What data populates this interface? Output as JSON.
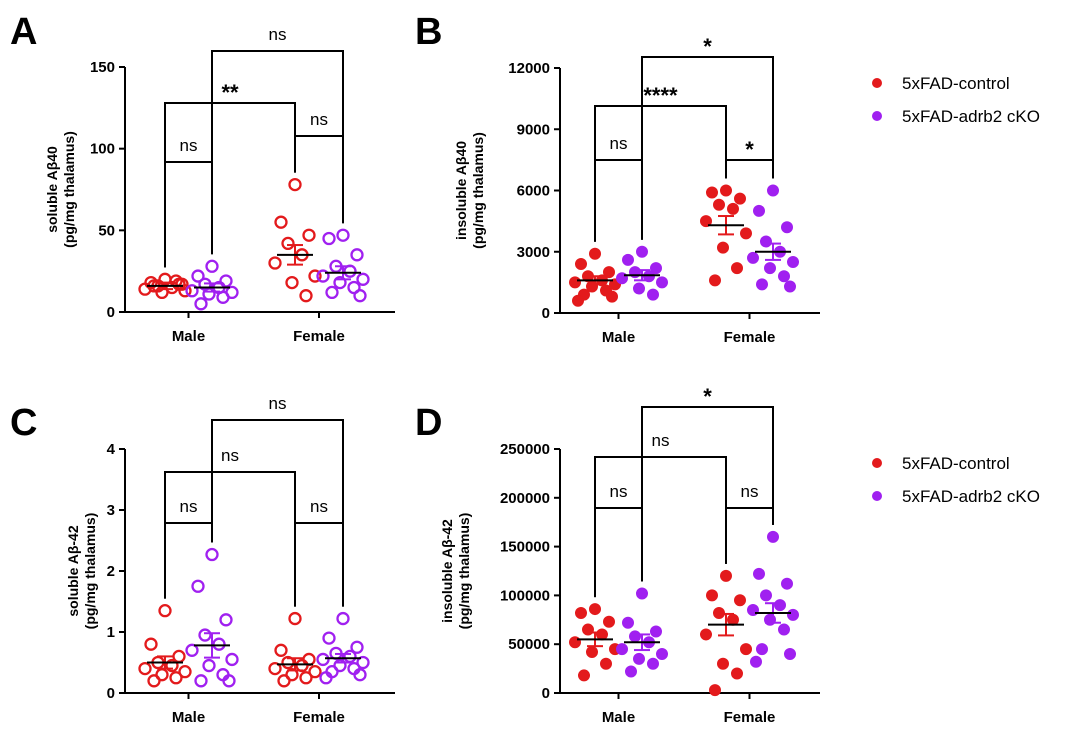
{
  "colors": {
    "control": "#e31a1c",
    "cko": "#a020f0",
    "axis": "#000000"
  },
  "legend": [
    {
      "label": "5xFAD-control",
      "color": "#e31a1c"
    },
    {
      "label": "5xFAD-adrb2 cKO",
      "color": "#a020f0"
    }
  ],
  "chart_data": [
    {
      "panel": "A",
      "type": "scatter",
      "marker": "open-circle",
      "ylabel_line1": "soluble Aβ40",
      "ylabel_line2": "(pg/mg thalamus)",
      "ylim": [
        0,
        150
      ],
      "yticks": [
        0,
        50,
        100,
        150
      ],
      "categories": [
        "Male",
        "Female"
      ],
      "groups": [
        {
          "category": "Male",
          "series": "5xFAD-control",
          "mean": 16,
          "sem": 2,
          "values": [
            20,
            18,
            17,
            16,
            15,
            14,
            13,
            12,
            19,
            16,
            17
          ]
        },
        {
          "category": "Male",
          "series": "5xFAD-adrb2 cKO",
          "mean": 15,
          "sem": 2.5,
          "values": [
            28,
            22,
            19,
            17,
            15,
            13,
            12,
            11,
            9,
            5
          ]
        },
        {
          "category": "Female",
          "series": "5xFAD-control",
          "mean": 35,
          "sem": 6,
          "values": [
            78,
            55,
            47,
            42,
            35,
            30,
            22,
            18,
            10
          ]
        },
        {
          "category": "Female",
          "series": "5xFAD-adrb2 cKO",
          "mean": 24,
          "sem": 4,
          "values": [
            47,
            45,
            35,
            28,
            25,
            22,
            20,
            18,
            15,
            12,
            10
          ]
        }
      ],
      "comparisons": [
        {
          "label": "ns",
          "from": "Male/5xFAD-control",
          "to": "Male/5xFAD-adrb2 cKO"
        },
        {
          "label": "ns",
          "from": "Female/5xFAD-control",
          "to": "Female/5xFAD-adrb2 cKO"
        },
        {
          "label": "**",
          "from": "Male/5xFAD-control",
          "to": "Female/5xFAD-control"
        },
        {
          "label": "ns",
          "from": "Male/5xFAD-adrb2 cKO",
          "to": "Female/5xFAD-adrb2 cKO"
        }
      ]
    },
    {
      "panel": "B",
      "type": "scatter",
      "marker": "filled-circle",
      "ylabel_line1": "insoluble Aβ40",
      "ylabel_line2": "(pg/mg thalamus)",
      "ylim": [
        0,
        12000
      ],
      "yticks": [
        0,
        3000,
        6000,
        9000,
        12000
      ],
      "categories": [
        "Male",
        "Female"
      ],
      "groups": [
        {
          "category": "Male",
          "series": "5xFAD-control",
          "mean": 1600,
          "sem": 200,
          "values": [
            2900,
            2400,
            2000,
            1800,
            1600,
            1500,
            1400,
            1300,
            1100,
            900,
            800,
            600
          ]
        },
        {
          "category": "Male",
          "series": "5xFAD-adrb2 cKO",
          "mean": 1850,
          "sem": 250,
          "values": [
            3000,
            2600,
            2200,
            2000,
            1800,
            1700,
            1500,
            1200,
            900
          ]
        },
        {
          "category": "Female",
          "series": "5xFAD-control",
          "mean": 4300,
          "sem": 450,
          "values": [
            6000,
            5900,
            5600,
            5300,
            5100,
            4500,
            3900,
            3200,
            2200,
            1600
          ]
        },
        {
          "category": "Female",
          "series": "5xFAD-adrb2 cKO",
          "mean": 3000,
          "sem": 400,
          "values": [
            6000,
            5000,
            4200,
            3500,
            3000,
            2700,
            2500,
            2200,
            1800,
            1400,
            1300
          ]
        }
      ],
      "comparisons": [
        {
          "label": "ns",
          "from": "Male/5xFAD-control",
          "to": "Male/5xFAD-adrb2 cKO"
        },
        {
          "label": "*",
          "from": "Female/5xFAD-control",
          "to": "Female/5xFAD-adrb2 cKO"
        },
        {
          "label": "****",
          "from": "Male/5xFAD-control",
          "to": "Female/5xFAD-control"
        },
        {
          "label": "*",
          "from": "Male/5xFAD-adrb2 cKO",
          "to": "Female/5xFAD-adrb2 cKO"
        }
      ]
    },
    {
      "panel": "C",
      "type": "scatter",
      "marker": "open-circle",
      "ylabel_line1": "soluble Aβ-42",
      "ylabel_line2": "(pg/mg thalamus)",
      "ylim": [
        0,
        4
      ],
      "yticks": [
        0,
        1,
        2,
        3,
        4
      ],
      "categories": [
        "Male",
        "Female"
      ],
      "groups": [
        {
          "category": "Male",
          "series": "5xFAD-control",
          "mean": 0.5,
          "sem": 0.1,
          "values": [
            1.35,
            0.8,
            0.6,
            0.5,
            0.45,
            0.4,
            0.35,
            0.3,
            0.25,
            0.2
          ]
        },
        {
          "category": "Male",
          "series": "5xFAD-adrb2 cKO",
          "mean": 0.78,
          "sem": 0.2,
          "values": [
            2.27,
            1.75,
            1.2,
            0.95,
            0.8,
            0.7,
            0.55,
            0.45,
            0.3,
            0.2,
            0.2
          ]
        },
        {
          "category": "Female",
          "series": "5xFAD-control",
          "mean": 0.47,
          "sem": 0.1,
          "values": [
            1.22,
            0.7,
            0.55,
            0.5,
            0.45,
            0.4,
            0.35,
            0.3,
            0.25,
            0.2
          ]
        },
        {
          "category": "Female",
          "series": "5xFAD-adrb2 cKO",
          "mean": 0.57,
          "sem": 0.07,
          "values": [
            1.22,
            0.9,
            0.75,
            0.65,
            0.6,
            0.55,
            0.5,
            0.45,
            0.4,
            0.35,
            0.3,
            0.25
          ]
        }
      ],
      "comparisons": [
        {
          "label": "ns",
          "from": "Male/5xFAD-control",
          "to": "Male/5xFAD-adrb2 cKO"
        },
        {
          "label": "ns",
          "from": "Female/5xFAD-control",
          "to": "Female/5xFAD-adrb2 cKO"
        },
        {
          "label": "ns",
          "from": "Male/5xFAD-control",
          "to": "Female/5xFAD-control"
        },
        {
          "label": "ns",
          "from": "Male/5xFAD-adrb2 cKO",
          "to": "Female/5xFAD-adrb2 cKO"
        }
      ]
    },
    {
      "panel": "D",
      "type": "scatter",
      "marker": "filled-circle",
      "ylabel_line1": "insoluble Aβ-42",
      "ylabel_line2": "(pg/mg thalamus)",
      "ylim": [
        0,
        250000
      ],
      "yticks": [
        0,
        50000,
        100000,
        150000,
        200000,
        250000
      ],
      "categories": [
        "Male",
        "Female"
      ],
      "groups": [
        {
          "category": "Male",
          "series": "5xFAD-control",
          "mean": 55000,
          "sem": 7000,
          "values": [
            86000,
            82000,
            73000,
            65000,
            60000,
            52000,
            45000,
            42000,
            30000,
            18000
          ]
        },
        {
          "category": "Male",
          "series": "5xFAD-adrb2 cKO",
          "mean": 52000,
          "sem": 8000,
          "values": [
            102000,
            72000,
            63000,
            58000,
            52000,
            45000,
            40000,
            35000,
            30000,
            22000
          ]
        },
        {
          "category": "Female",
          "series": "5xFAD-control",
          "mean": 70000,
          "sem": 11000,
          "values": [
            120000,
            100000,
            95000,
            82000,
            75000,
            60000,
            45000,
            30000,
            20000,
            3000
          ]
        },
        {
          "category": "Female",
          "series": "5xFAD-adrb2 cKO",
          "mean": 82000,
          "sem": 10000,
          "values": [
            160000,
            122000,
            112000,
            100000,
            90000,
            85000,
            80000,
            75000,
            65000,
            45000,
            40000,
            32000
          ]
        }
      ],
      "comparisons": [
        {
          "label": "ns",
          "from": "Male/5xFAD-control",
          "to": "Male/5xFAD-adrb2 cKO"
        },
        {
          "label": "ns",
          "from": "Female/5xFAD-control",
          "to": "Female/5xFAD-adrb2 cKO"
        },
        {
          "label": "ns",
          "from": "Male/5xFAD-control",
          "to": "Female/5xFAD-control"
        },
        {
          "label": "*",
          "from": "Male/5xFAD-adrb2 cKO",
          "to": "Female/5xFAD-adrb2 cKO"
        }
      ]
    }
  ]
}
